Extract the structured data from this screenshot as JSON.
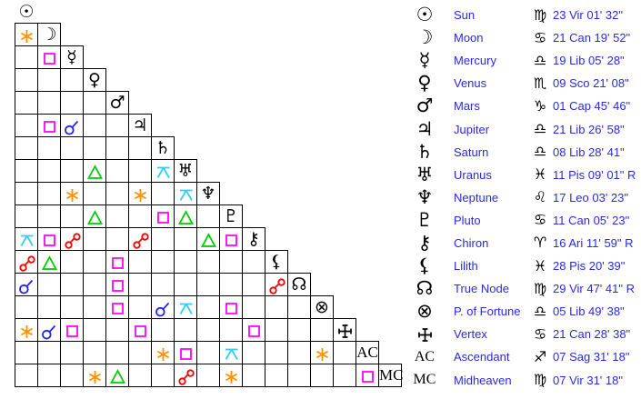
{
  "colors": {
    "background": "#ffffff",
    "text_blue": "#2a2ae2",
    "glyph_black": "#000000"
  },
  "aspect_types": {
    "conjunction": {
      "label": "conjunction",
      "color": "#2222ff"
    },
    "sextile": {
      "label": "sextile",
      "color": "#ff9000"
    },
    "square": {
      "label": "square",
      "color": "#ff00ff"
    },
    "trine": {
      "label": "trine",
      "color": "#00cc00"
    },
    "opposition": {
      "label": "opposition",
      "color": "#ff0000"
    },
    "quincunx": {
      "label": "quincunx",
      "color": "#33ccff"
    }
  },
  "points": [
    {
      "id": "sun",
      "name": "Sun",
      "glyph": "☉",
      "glyph_kind": "char",
      "sign": "Vir",
      "sign_glyph": "♍",
      "position": "23 Vir 01' 32\""
    },
    {
      "id": "moon",
      "name": "Moon",
      "glyph": "☽",
      "glyph_kind": "char",
      "sign": "Can",
      "sign_glyph": "♋",
      "position": "21 Can 19' 52\""
    },
    {
      "id": "mercury",
      "name": "Mercury",
      "glyph": "☿",
      "glyph_kind": "char",
      "sign": "Lib",
      "sign_glyph": "♎",
      "position": "19 Lib 05' 28\""
    },
    {
      "id": "venus",
      "name": "Venus",
      "glyph": "♀",
      "glyph_kind": "char",
      "sign": "Sco",
      "sign_glyph": "♏",
      "position": "09 Sco 21' 08\""
    },
    {
      "id": "mars",
      "name": "Mars",
      "glyph": "♂",
      "glyph_kind": "char",
      "sign": "Cap",
      "sign_glyph": "♑",
      "position": "01 Cap 45' 46\""
    },
    {
      "id": "jupiter",
      "name": "Jupiter",
      "glyph": "♃",
      "glyph_kind": "char",
      "sign": "Lib",
      "sign_glyph": "♎",
      "position": "21 Lib 26' 58\""
    },
    {
      "id": "saturn",
      "name": "Saturn",
      "glyph": "♄",
      "glyph_kind": "char",
      "sign": "Lib",
      "sign_glyph": "♎",
      "position": "08 Lib 28' 41\""
    },
    {
      "id": "uranus",
      "name": "Uranus",
      "glyph": "♅",
      "glyph_kind": "char",
      "sign": "Pis",
      "sign_glyph": "♓",
      "position": "11 Pis 09' 01\" R"
    },
    {
      "id": "neptune",
      "name": "Neptune",
      "glyph": "♆",
      "glyph_kind": "char",
      "sign": "Leo",
      "sign_glyph": "♌",
      "position": "17 Leo 03' 23\""
    },
    {
      "id": "pluto",
      "name": "Pluto",
      "glyph": "♇",
      "glyph_kind": "char",
      "sign": "Can",
      "sign_glyph": "♋",
      "position": "11 Can 05' 23\""
    },
    {
      "id": "chiron",
      "name": "Chiron",
      "glyph": "⚷",
      "glyph_kind": "char",
      "sign": "Ari",
      "sign_glyph": "♈",
      "position": "16 Ari 11' 59\" R"
    },
    {
      "id": "lilith",
      "name": "Lilith",
      "glyph": "⚸",
      "glyph_kind": "char",
      "sign": "Pis",
      "sign_glyph": "♓",
      "position": "28 Pis 20' 39\""
    },
    {
      "id": "true-node",
      "name": "True Node",
      "glyph": "☊",
      "glyph_kind": "char",
      "sign": "Vir",
      "sign_glyph": "♍",
      "position": "29 Vir 47' 41\" R"
    },
    {
      "id": "fortune",
      "name": "P. of Fortune",
      "glyph": "⊗",
      "glyph_kind": "char",
      "sign": "Lib",
      "sign_glyph": "♎",
      "position": "05 Lib 49' 38\""
    },
    {
      "id": "vertex",
      "name": "Vertex",
      "glyph": "",
      "glyph_kind": "vertex",
      "sign": "Can",
      "sign_glyph": "♋",
      "position": "21 Can 28' 38\""
    },
    {
      "id": "ascendant",
      "name": "Ascendant",
      "glyph": "AC",
      "glyph_kind": "text",
      "sign": "Sag",
      "sign_glyph": "♐",
      "position": "07 Sag 31' 18\""
    },
    {
      "id": "midheaven",
      "name": "Midheaven",
      "glyph": "MC",
      "glyph_kind": "text",
      "sign": "Vir",
      "sign_glyph": "♍",
      "position": "07 Vir 31' 18\""
    }
  ],
  "aspects": [
    {
      "row": 1,
      "col": 0,
      "type": "sextile"
    },
    {
      "row": 2,
      "col": 1,
      "type": "square"
    },
    {
      "row": 5,
      "col": 1,
      "type": "square"
    },
    {
      "row": 5,
      "col": 2,
      "type": "conjunction"
    },
    {
      "row": 7,
      "col": 3,
      "type": "trine"
    },
    {
      "row": 7,
      "col": 6,
      "type": "quincunx"
    },
    {
      "row": 8,
      "col": 2,
      "type": "sextile"
    },
    {
      "row": 8,
      "col": 5,
      "type": "sextile"
    },
    {
      "row": 8,
      "col": 7,
      "type": "quincunx"
    },
    {
      "row": 9,
      "col": 3,
      "type": "trine"
    },
    {
      "row": 9,
      "col": 6,
      "type": "square"
    },
    {
      "row": 9,
      "col": 7,
      "type": "trine"
    },
    {
      "row": 10,
      "col": 0,
      "type": "quincunx"
    },
    {
      "row": 10,
      "col": 1,
      "type": "square"
    },
    {
      "row": 10,
      "col": 2,
      "type": "opposition"
    },
    {
      "row": 10,
      "col": 5,
      "type": "opposition"
    },
    {
      "row": 10,
      "col": 8,
      "type": "trine"
    },
    {
      "row": 10,
      "col": 9,
      "type": "square"
    },
    {
      "row": 11,
      "col": 0,
      "type": "opposition"
    },
    {
      "row": 11,
      "col": 1,
      "type": "trine"
    },
    {
      "row": 11,
      "col": 4,
      "type": "square"
    },
    {
      "row": 12,
      "col": 0,
      "type": "conjunction"
    },
    {
      "row": 12,
      "col": 4,
      "type": "square"
    },
    {
      "row": 12,
      "col": 11,
      "type": "opposition"
    },
    {
      "row": 13,
      "col": 4,
      "type": "square"
    },
    {
      "row": 13,
      "col": 6,
      "type": "conjunction"
    },
    {
      "row": 13,
      "col": 7,
      "type": "quincunx"
    },
    {
      "row": 13,
      "col": 9,
      "type": "square"
    },
    {
      "row": 14,
      "col": 0,
      "type": "sextile"
    },
    {
      "row": 14,
      "col": 1,
      "type": "conjunction"
    },
    {
      "row": 14,
      "col": 2,
      "type": "square"
    },
    {
      "row": 14,
      "col": 5,
      "type": "square"
    },
    {
      "row": 14,
      "col": 10,
      "type": "square"
    },
    {
      "row": 15,
      "col": 6,
      "type": "sextile"
    },
    {
      "row": 15,
      "col": 7,
      "type": "square"
    },
    {
      "row": 15,
      "col": 9,
      "type": "quincunx"
    },
    {
      "row": 15,
      "col": 13,
      "type": "sextile"
    },
    {
      "row": 16,
      "col": 3,
      "type": "sextile"
    },
    {
      "row": 16,
      "col": 4,
      "type": "trine"
    },
    {
      "row": 16,
      "col": 7,
      "type": "opposition"
    },
    {
      "row": 16,
      "col": 9,
      "type": "sextile"
    },
    {
      "row": 16,
      "col": 15,
      "type": "square"
    }
  ]
}
